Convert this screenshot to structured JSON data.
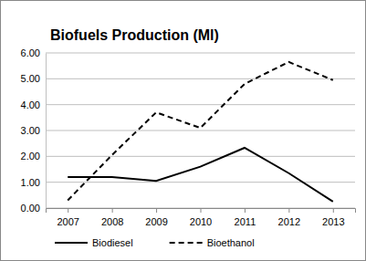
{
  "chart_data": {
    "type": "line",
    "title": "Biofuels Production (Ml)",
    "categories": [
      "2007",
      "2008",
      "2009",
      "2010",
      "2011",
      "2012",
      "2013"
    ],
    "series": [
      {
        "name": "Biodiesel",
        "color": "#000000",
        "line_style": "solid",
        "values": [
          1.2,
          1.2,
          1.05,
          1.6,
          2.33,
          1.35,
          0.25
        ]
      },
      {
        "name": "Bioethanol",
        "color": "#000000",
        "line_style": "dashed",
        "values": [
          0.3,
          2.05,
          3.7,
          3.1,
          4.8,
          5.65,
          4.95
        ]
      }
    ],
    "ylim": [
      0,
      6
    ],
    "yticks": [
      {
        "value": 0,
        "label": "0.00"
      },
      {
        "value": 1,
        "label": "1.00"
      },
      {
        "value": 2,
        "label": "2.00"
      },
      {
        "value": 3,
        "label": "3.00"
      },
      {
        "value": 4,
        "label": "4.00"
      },
      {
        "value": 5,
        "label": "5.00"
      },
      {
        "value": 6,
        "label": "6.00"
      }
    ],
    "grid": true,
    "legend": "bottom"
  }
}
